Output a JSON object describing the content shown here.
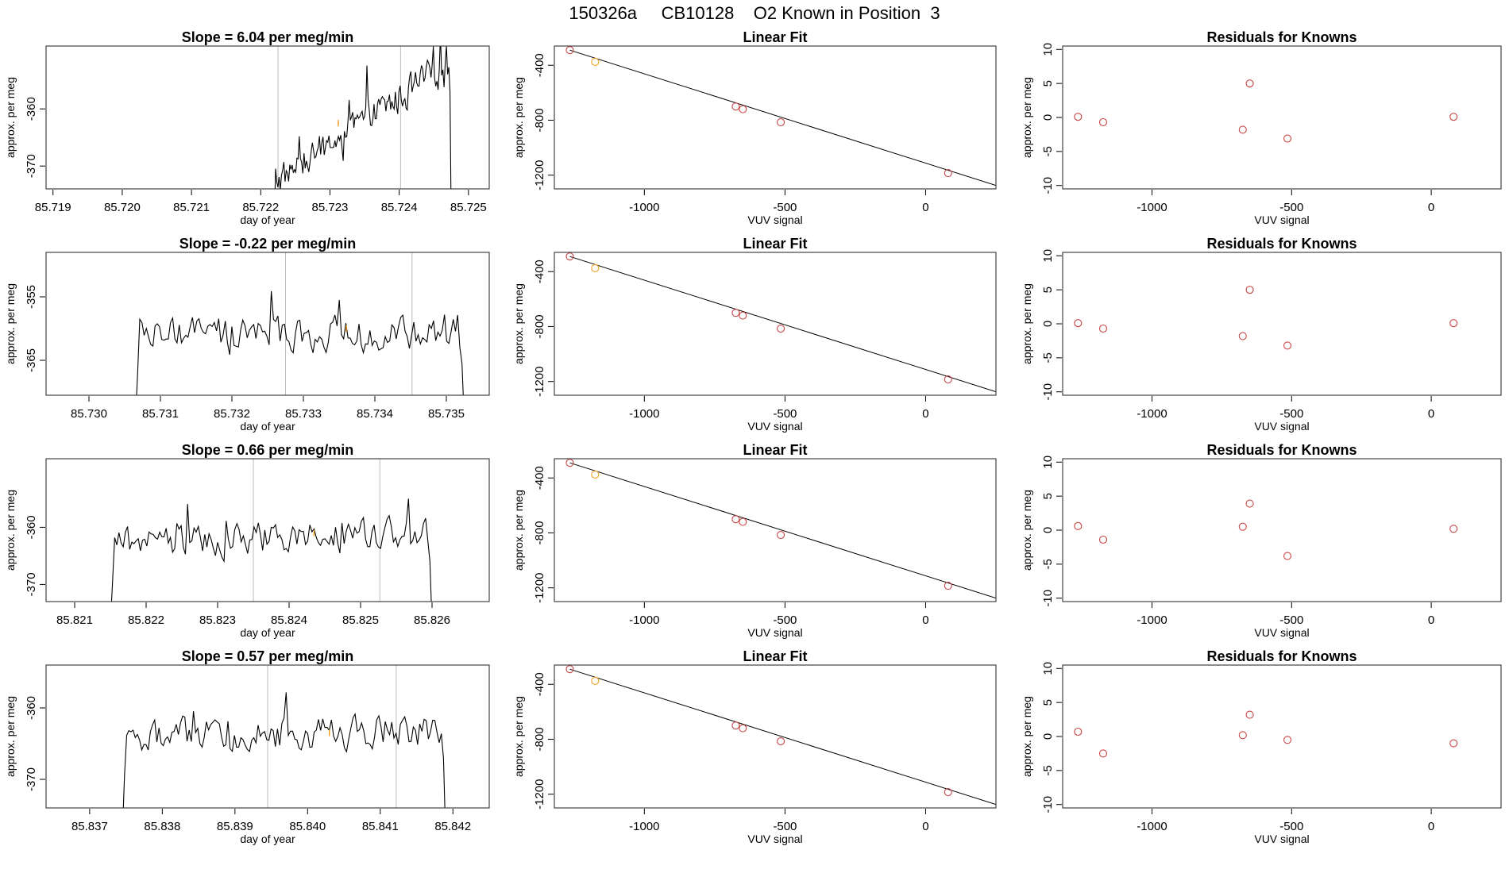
{
  "page_title": "150326a     CB10128    O2 Known in Position  3",
  "colors": {
    "line": "#000000",
    "point_red": "#cc4444",
    "point_orange": "#f0a020",
    "vline": "#bbbbbb",
    "frame": "#444444"
  },
  "chart_data": [
    {
      "type": "line",
      "title": "Slope =  6.04  per meg/min",
      "xlabel": "day of year",
      "ylabel": "approx. per meg",
      "xlim": [
        85.7189,
        85.7253
      ],
      "ylim": [
        -374,
        -349
      ],
      "x_ticks": [
        85.719,
        85.72,
        85.721,
        85.722,
        85.723,
        85.724,
        85.725
      ],
      "x_tick_labels": [
        "85.719",
        "85.720",
        "85.721",
        "85.722",
        "85.723",
        "85.724",
        "85.725"
      ],
      "y_ticks": [
        -360,
        -370
      ],
      "y_tick_labels": [
        "-360",
        "-370"
      ],
      "start_x": 85.72218,
      "end_x": 85.72475,
      "trend": [
        -373,
        -352
      ],
      "noise_amp": 3.2,
      "vlines": [
        85.72225,
        85.72402
      ],
      "mean_point": [
        85.72312,
        -362.5
      ]
    },
    {
      "type": "scatter",
      "title": "Linear Fit",
      "xlabel": "VUV signal",
      "ylabel": "approx. per meg",
      "xlim": [
        -1320,
        250
      ],
      "ylim": [
        -1300,
        -260
      ],
      "x_ticks": [
        -1000,
        -500,
        0
      ],
      "x_tick_labels": [
        "-1000",
        "-500",
        "0"
      ],
      "y_ticks": [
        -400,
        -800,
        -1200
      ],
      "y_tick_labels": [
        "-400",
        "-800",
        "-1200"
      ],
      "x": [
        -1265,
        -1175,
        -675,
        -650,
        -515,
        80
      ],
      "y": [
        -290,
        -375,
        -700,
        -720,
        -815,
        -1185
      ],
      "highlight_index": 1,
      "fit_line": [
        [
          -1265,
          -290
        ],
        [
          250,
          -1275
        ]
      ]
    },
    {
      "type": "scatter",
      "title": "Residuals for Knowns",
      "xlabel": "VUV signal",
      "ylabel": "approx. per meg",
      "xlim": [
        -1320,
        250
      ],
      "ylim": [
        -10.5,
        10.5
      ],
      "x_ticks": [
        -1000,
        -500,
        0
      ],
      "x_tick_labels": [
        "-1000",
        "-500",
        "0"
      ],
      "y_ticks": [
        10,
        5,
        0,
        -5,
        -10
      ],
      "y_tick_labels": [
        "10",
        "5",
        "0",
        "-5",
        "-10"
      ],
      "x": [
        -1265,
        -1175,
        -675,
        -650,
        -515,
        80
      ],
      "y": [
        0.1,
        -0.7,
        -1.8,
        5.0,
        -3.1,
        0.1
      ]
    },
    {
      "type": "line",
      "title": "Slope =  -0.22  per meg/min",
      "xlabel": "day of year",
      "ylabel": "approx. per meg",
      "xlim": [
        85.7294,
        85.7356
      ],
      "ylim": [
        -370.5,
        -348
      ],
      "x_ticks": [
        85.73,
        85.731,
        85.732,
        85.733,
        85.734,
        85.735
      ],
      "x_tick_labels": [
        "85.730",
        "85.731",
        "85.732",
        "85.733",
        "85.734",
        "85.735"
      ],
      "y_ticks": [
        -355,
        -365
      ],
      "y_tick_labels": [
        "-355",
        "-365"
      ],
      "start_x": 85.73065,
      "end_x": 85.73525,
      "trend": [
        -361,
        -361
      ],
      "noise_amp": 3.0,
      "vlines": [
        85.73275,
        85.73452
      ],
      "mean_point": [
        85.7336,
        -360
      ]
    },
    {
      "type": "scatter",
      "title": "Linear Fit",
      "xlabel": "VUV signal",
      "ylabel": "approx. per meg",
      "xlim": [
        -1320,
        250
      ],
      "ylim": [
        -1300,
        -260
      ],
      "x_ticks": [
        -1000,
        -500,
        0
      ],
      "x_tick_labels": [
        "-1000",
        "-500",
        "0"
      ],
      "y_ticks": [
        -400,
        -800,
        -1200
      ],
      "y_tick_labels": [
        "-400",
        "-800",
        "-1200"
      ],
      "x": [
        -1265,
        -1175,
        -675,
        -650,
        -515,
        80
      ],
      "y": [
        -290,
        -375,
        -700,
        -720,
        -815,
        -1185
      ],
      "highlight_index": 1,
      "fit_line": [
        [
          -1265,
          -290
        ],
        [
          250,
          -1275
        ]
      ]
    },
    {
      "type": "scatter",
      "title": "Residuals for Knowns",
      "xlabel": "VUV signal",
      "ylabel": "approx. per meg",
      "xlim": [
        -1320,
        250
      ],
      "ylim": [
        -10.5,
        10.5
      ],
      "x_ticks": [
        -1000,
        -500,
        0
      ],
      "x_tick_labels": [
        "-1000",
        "-500",
        "0"
      ],
      "y_ticks": [
        10,
        5,
        0,
        -5,
        -10
      ],
      "y_tick_labels": [
        "10",
        "5",
        "0",
        "-5",
        "-10"
      ],
      "x": [
        -1265,
        -1175,
        -675,
        -650,
        -515,
        80
      ],
      "y": [
        0.1,
        -0.7,
        -1.8,
        5.0,
        -3.2,
        0.1
      ]
    },
    {
      "type": "line",
      "title": "Slope =  0.66  per meg/min",
      "xlabel": "day of year",
      "ylabel": "approx. per meg",
      "xlim": [
        85.8206,
        85.8268
      ],
      "ylim": [
        -373,
        -348
      ],
      "x_ticks": [
        85.821,
        85.822,
        85.823,
        85.824,
        85.825,
        85.826
      ],
      "x_tick_labels": [
        "85.821",
        "85.822",
        "85.823",
        "85.824",
        "85.825",
        "85.826"
      ],
      "y_ticks": [
        -360,
        -370
      ],
      "y_tick_labels": [
        "-360",
        "-370"
      ],
      "start_x": 85.8215,
      "end_x": 85.826,
      "trend": [
        -363,
        -361
      ],
      "noise_amp": 3.3,
      "vlines": [
        85.8235,
        85.82527
      ],
      "mean_point": [
        85.82435,
        -361
      ]
    },
    {
      "type": "scatter",
      "title": "Linear Fit",
      "xlabel": "VUV signal",
      "ylabel": "approx. per meg",
      "xlim": [
        -1320,
        250
      ],
      "ylim": [
        -1300,
        -260
      ],
      "x_ticks": [
        -1000,
        -500,
        0
      ],
      "x_tick_labels": [
        "-1000",
        "-500",
        "0"
      ],
      "y_ticks": [
        -400,
        -800,
        -1200
      ],
      "y_tick_labels": [
        "-400",
        "-800",
        "-1200"
      ],
      "x": [
        -1265,
        -1175,
        -675,
        -650,
        -515,
        80
      ],
      "y": [
        -290,
        -375,
        -700,
        -720,
        -815,
        -1185
      ],
      "highlight_index": 1,
      "fit_line": [
        [
          -1265,
          -290
        ],
        [
          250,
          -1275
        ]
      ]
    },
    {
      "type": "scatter",
      "title": "Residuals for Knowns",
      "xlabel": "VUV signal",
      "ylabel": "approx. per meg",
      "xlim": [
        -1320,
        250
      ],
      "ylim": [
        -10.5,
        10.5
      ],
      "x_ticks": [
        -1000,
        -500,
        0
      ],
      "x_tick_labels": [
        "-1000",
        "-500",
        "0"
      ],
      "y_ticks": [
        10,
        5,
        0,
        -5,
        -10
      ],
      "y_tick_labels": [
        "10",
        "5",
        "0",
        "-5",
        "-10"
      ],
      "x": [
        -1265,
        -1175,
        -675,
        -650,
        -515,
        80
      ],
      "y": [
        0.6,
        -1.4,
        0.5,
        3.9,
        -3.8,
        0.2
      ]
    },
    {
      "type": "line",
      "title": "Slope =  0.57  per meg/min",
      "xlabel": "day of year",
      "ylabel": "approx. per meg",
      "xlim": [
        85.8364,
        85.8425
      ],
      "ylim": [
        -374,
        -354
      ],
      "x_ticks": [
        85.837,
        85.838,
        85.839,
        85.84,
        85.841,
        85.842
      ],
      "x_tick_labels": [
        "85.837",
        "85.838",
        "85.839",
        "85.840",
        "85.841",
        "85.842"
      ],
      "y_ticks": [
        -360,
        -370
      ],
      "y_tick_labels": [
        "-360",
        "-370"
      ],
      "start_x": 85.83745,
      "end_x": 85.8419,
      "trend": [
        -364,
        -363
      ],
      "noise_amp": 2.7,
      "vlines": [
        85.83945,
        85.84122
      ],
      "mean_point": [
        85.8403,
        -363.5
      ]
    },
    {
      "type": "scatter",
      "title": "Linear Fit",
      "xlabel": "VUV signal",
      "ylabel": "approx. per meg",
      "xlim": [
        -1320,
        250
      ],
      "ylim": [
        -1300,
        -260
      ],
      "x_ticks": [
        -1000,
        -500,
        0
      ],
      "x_tick_labels": [
        "-1000",
        "-500",
        "0"
      ],
      "y_ticks": [
        -400,
        -800,
        -1200
      ],
      "y_tick_labels": [
        "-400",
        "-800",
        "-1200"
      ],
      "x": [
        -1265,
        -1175,
        -675,
        -650,
        -515,
        80
      ],
      "y": [
        -290,
        -375,
        -700,
        -720,
        -815,
        -1185
      ],
      "highlight_index": 1,
      "fit_line": [
        [
          -1265,
          -290
        ],
        [
          250,
          -1275
        ]
      ]
    },
    {
      "type": "scatter",
      "title": "Residuals for Knowns",
      "xlabel": "VUV signal",
      "ylabel": "approx. per meg",
      "xlim": [
        -1320,
        250
      ],
      "ylim": [
        -10.5,
        10.5
      ],
      "x_ticks": [
        -1000,
        -500,
        0
      ],
      "x_tick_labels": [
        "-1000",
        "-500",
        "0"
      ],
      "y_ticks": [
        10,
        5,
        0,
        -5,
        -10
      ],
      "y_tick_labels": [
        "10",
        "5",
        "0",
        "-5",
        "-10"
      ],
      "x": [
        -1265,
        -1175,
        -675,
        -650,
        -515,
        80
      ],
      "y": [
        0.7,
        -2.5,
        0.2,
        3.2,
        -0.5,
        -1.0
      ]
    }
  ]
}
